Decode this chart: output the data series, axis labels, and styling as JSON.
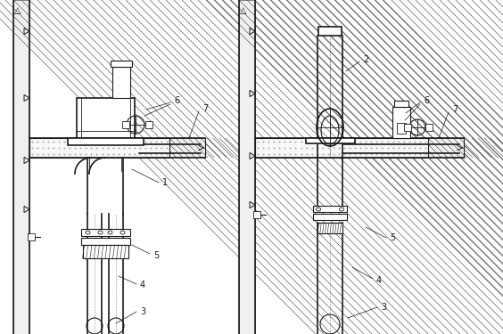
{
  "bg_color": "#ffffff",
  "line_color": "#1a1a1a",
  "fig_width": 5.64,
  "fig_height": 3.75,
  "dpi": 100
}
